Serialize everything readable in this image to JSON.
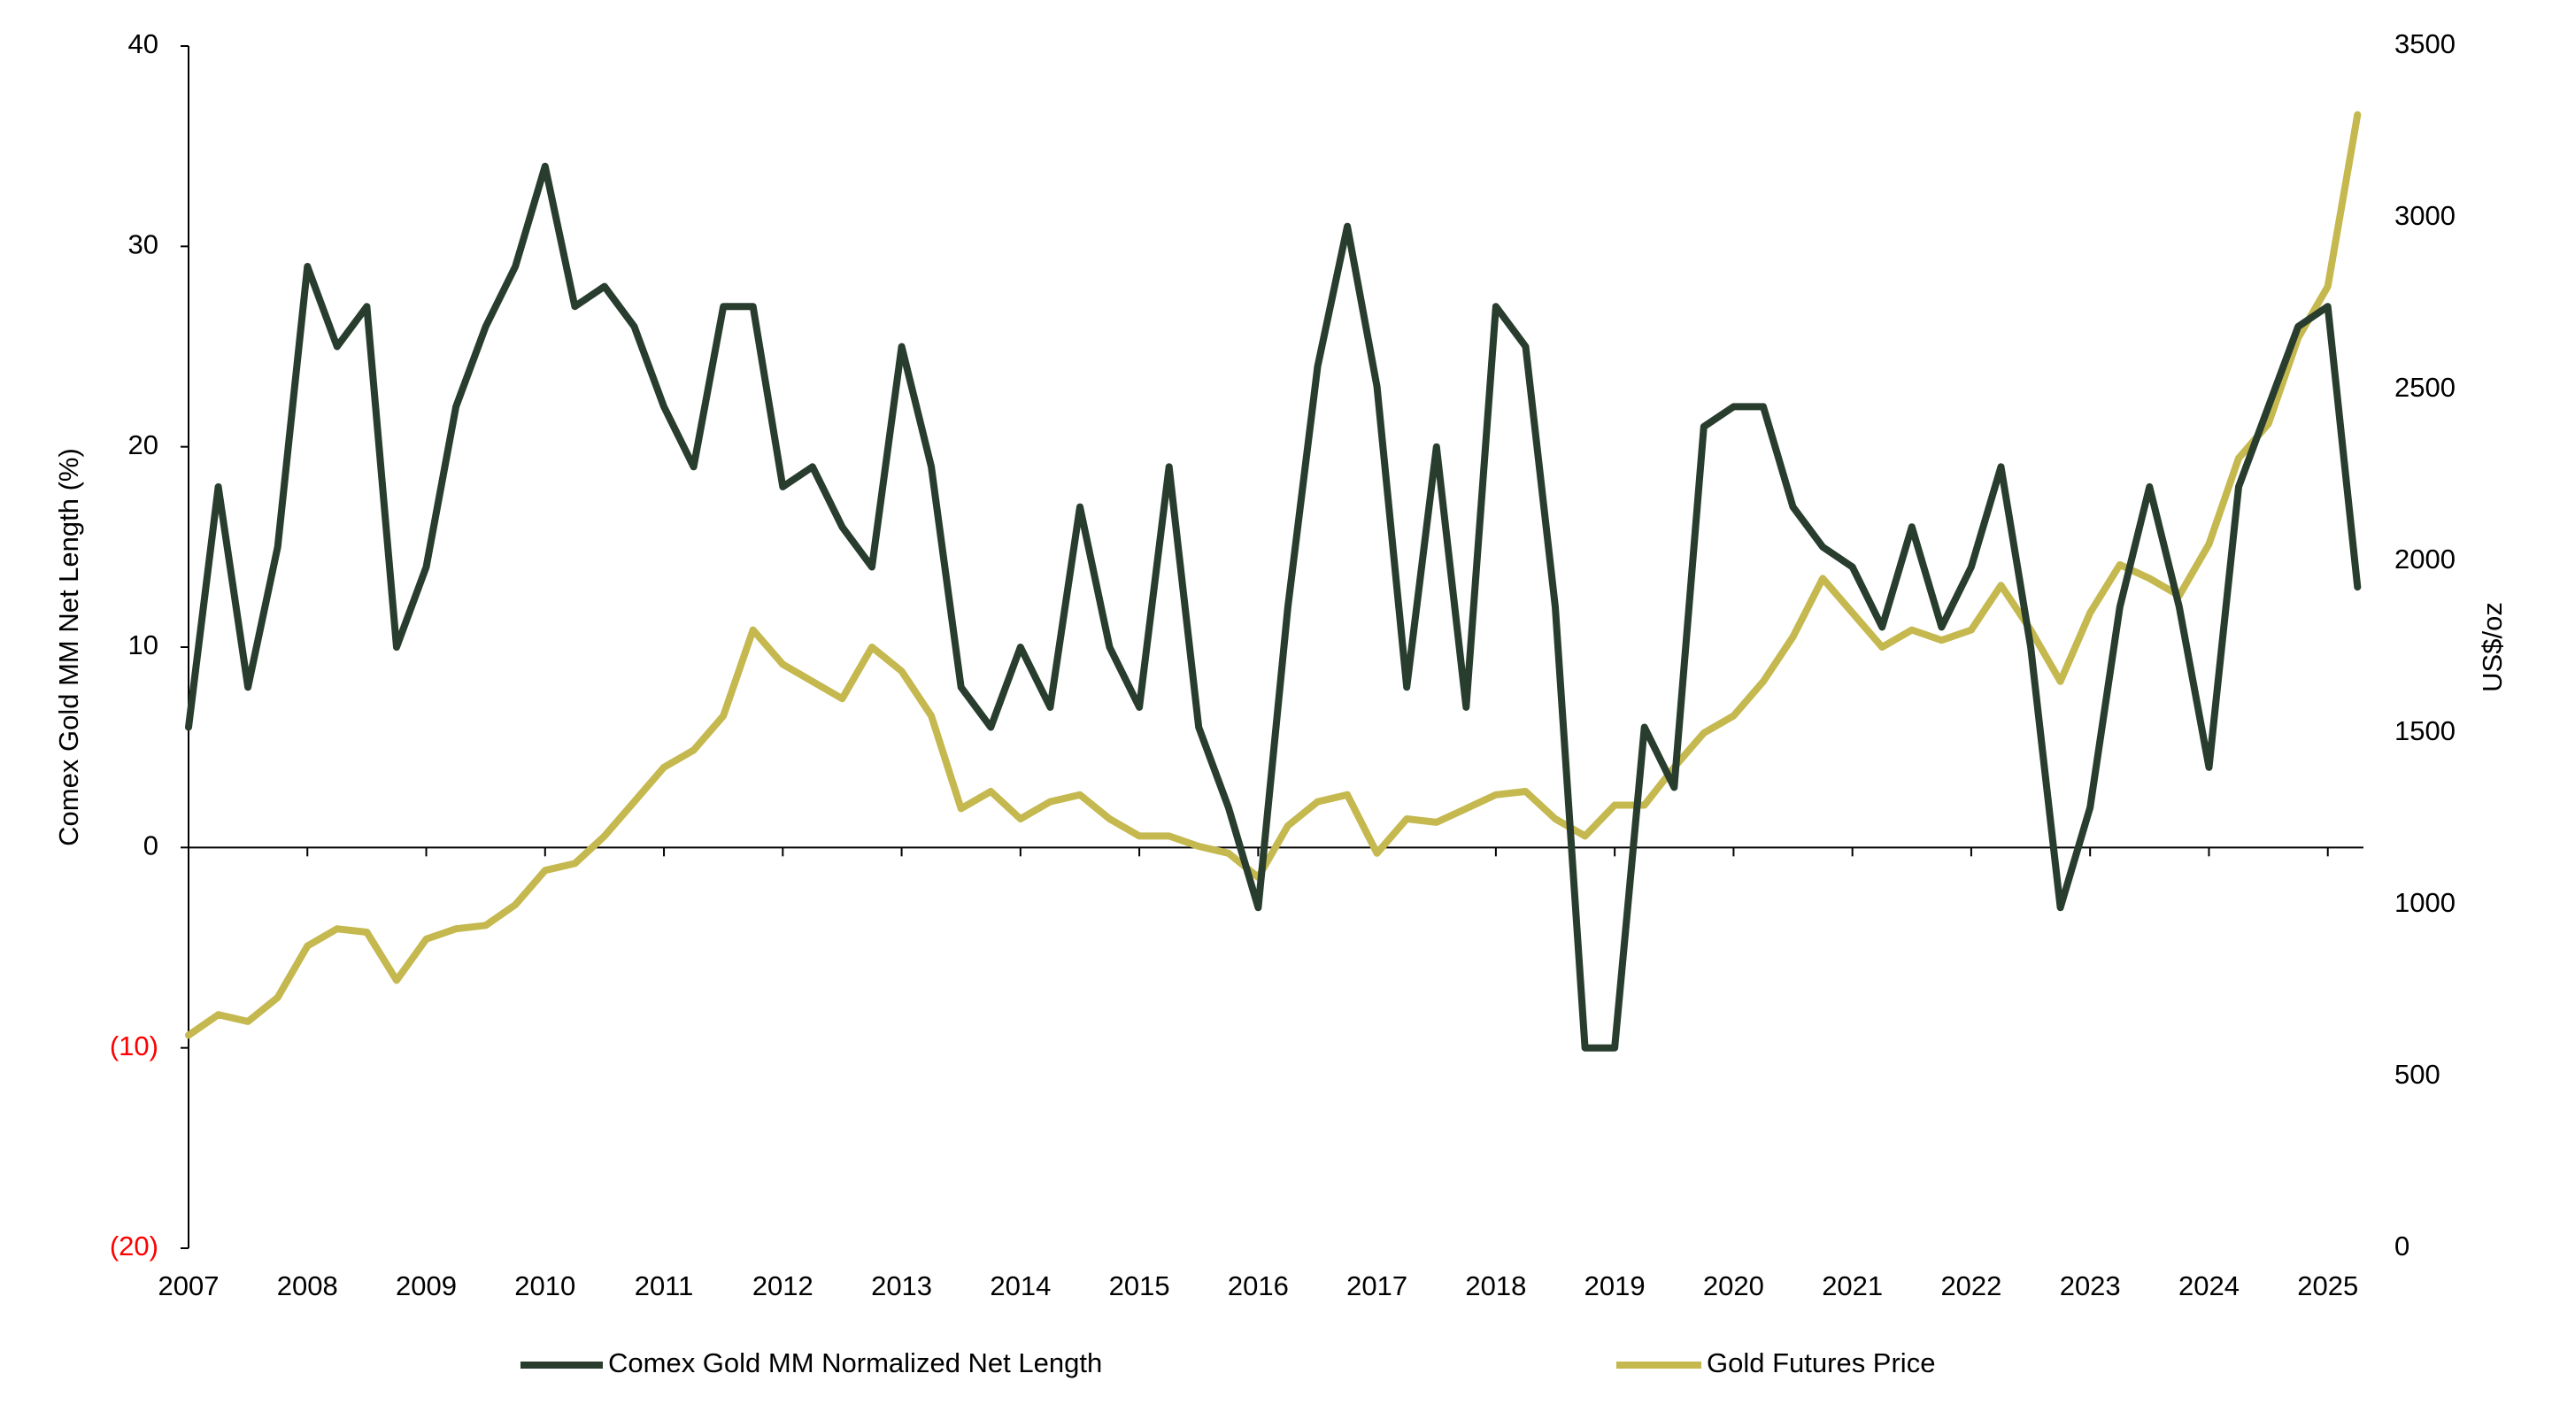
{
  "chart_data": {
    "type": "line",
    "y_label": "Comex Gold MM Net Length (%)",
    "y2_label": "US$/oz",
    "xlim": [
      2007,
      2025.3
    ],
    "xticks": [
      2007,
      2008,
      2009,
      2010,
      2011,
      2012,
      2013,
      2014,
      2015,
      2016,
      2017,
      2018,
      2019,
      2020,
      2021,
      2022,
      2023,
      2024,
      2025
    ],
    "ylim": [
      -20,
      40
    ],
    "yticks": [
      {
        "value": -20,
        "label": "(20)"
      },
      {
        "value": -10,
        "label": "(10)"
      },
      0,
      10,
      20,
      30,
      40
    ],
    "negative_tick_color": "#ff0000",
    "y2lim": [
      0,
      3500
    ],
    "y2ticks": [
      0,
      500,
      1000,
      1500,
      2000,
      2500,
      3000,
      3500
    ],
    "legend": "bottom",
    "x": [
      2007,
      2007.25,
      2007.5,
      2007.75,
      2008,
      2008.25,
      2008.5,
      2008.75,
      2009,
      2009.25,
      2009.5,
      2009.75,
      2010,
      2010.25,
      2010.5,
      2010.75,
      2011,
      2011.25,
      2011.5,
      2011.75,
      2012,
      2012.25,
      2012.5,
      2012.75,
      2013,
      2013.25,
      2013.5,
      2013.75,
      2014,
      2014.25,
      2014.5,
      2014.75,
      2015,
      2015.25,
      2015.5,
      2015.75,
      2016,
      2016.25,
      2016.5,
      2016.75,
      2017,
      2017.25,
      2017.5,
      2017.75,
      2018,
      2018.25,
      2018.5,
      2018.75,
      2019,
      2019.25,
      2019.5,
      2019.75,
      2020,
      2020.25,
      2020.5,
      2020.75,
      2021,
      2021.25,
      2021.5,
      2021.75,
      2022,
      2022.25,
      2022.5,
      2022.75,
      2023,
      2023.25,
      2023.5,
      2023.75,
      2024,
      2024.25,
      2024.5,
      2024.75,
      2025,
      2025.25
    ],
    "series": [
      {
        "name": "Comex Gold MM Normalized Net Length",
        "color": "#283d2e",
        "values": [
          6,
          18,
          8,
          15,
          29,
          25,
          27,
          10,
          14,
          22,
          26,
          29,
          34,
          27,
          28,
          26,
          22,
          19,
          27,
          27,
          18,
          19,
          16,
          14,
          25,
          19,
          8,
          6,
          10,
          7,
          17,
          10,
          7,
          19,
          6,
          2,
          -3,
          12,
          24,
          31,
          23,
          8,
          20,
          7,
          27,
          25,
          12,
          -10,
          -10,
          6,
          3,
          21,
          22,
          22,
          17,
          15,
          14,
          11,
          16,
          11,
          14,
          19,
          10,
          -3,
          2,
          12,
          18,
          12,
          4,
          18,
          22,
          26,
          27,
          13
        ]
      },
      {
        "name": "Gold Futures Price",
        "color": "#c4b84f",
        "axis": "y2",
        "values": [
          620,
          680,
          660,
          730,
          880,
          930,
          920,
          780,
          900,
          930,
          940,
          1000,
          1100,
          1120,
          1200,
          1300,
          1400,
          1450,
          1550,
          1800,
          1700,
          1650,
          1600,
          1750,
          1680,
          1550,
          1280,
          1330,
          1250,
          1300,
          1320,
          1250,
          1200,
          1200,
          1170,
          1150,
          1080,
          1230,
          1300,
          1320,
          1150,
          1250,
          1240,
          1280,
          1320,
          1330,
          1250,
          1200,
          1290,
          1290,
          1400,
          1500,
          1550,
          1650,
          1780,
          1950,
          1850,
          1750,
          1800,
          1770,
          1800,
          1930,
          1800,
          1650,
          1850,
          1990,
          1950,
          1900,
          2050,
          2300,
          2400,
          2650,
          2800,
          3300
        ]
      }
    ]
  }
}
